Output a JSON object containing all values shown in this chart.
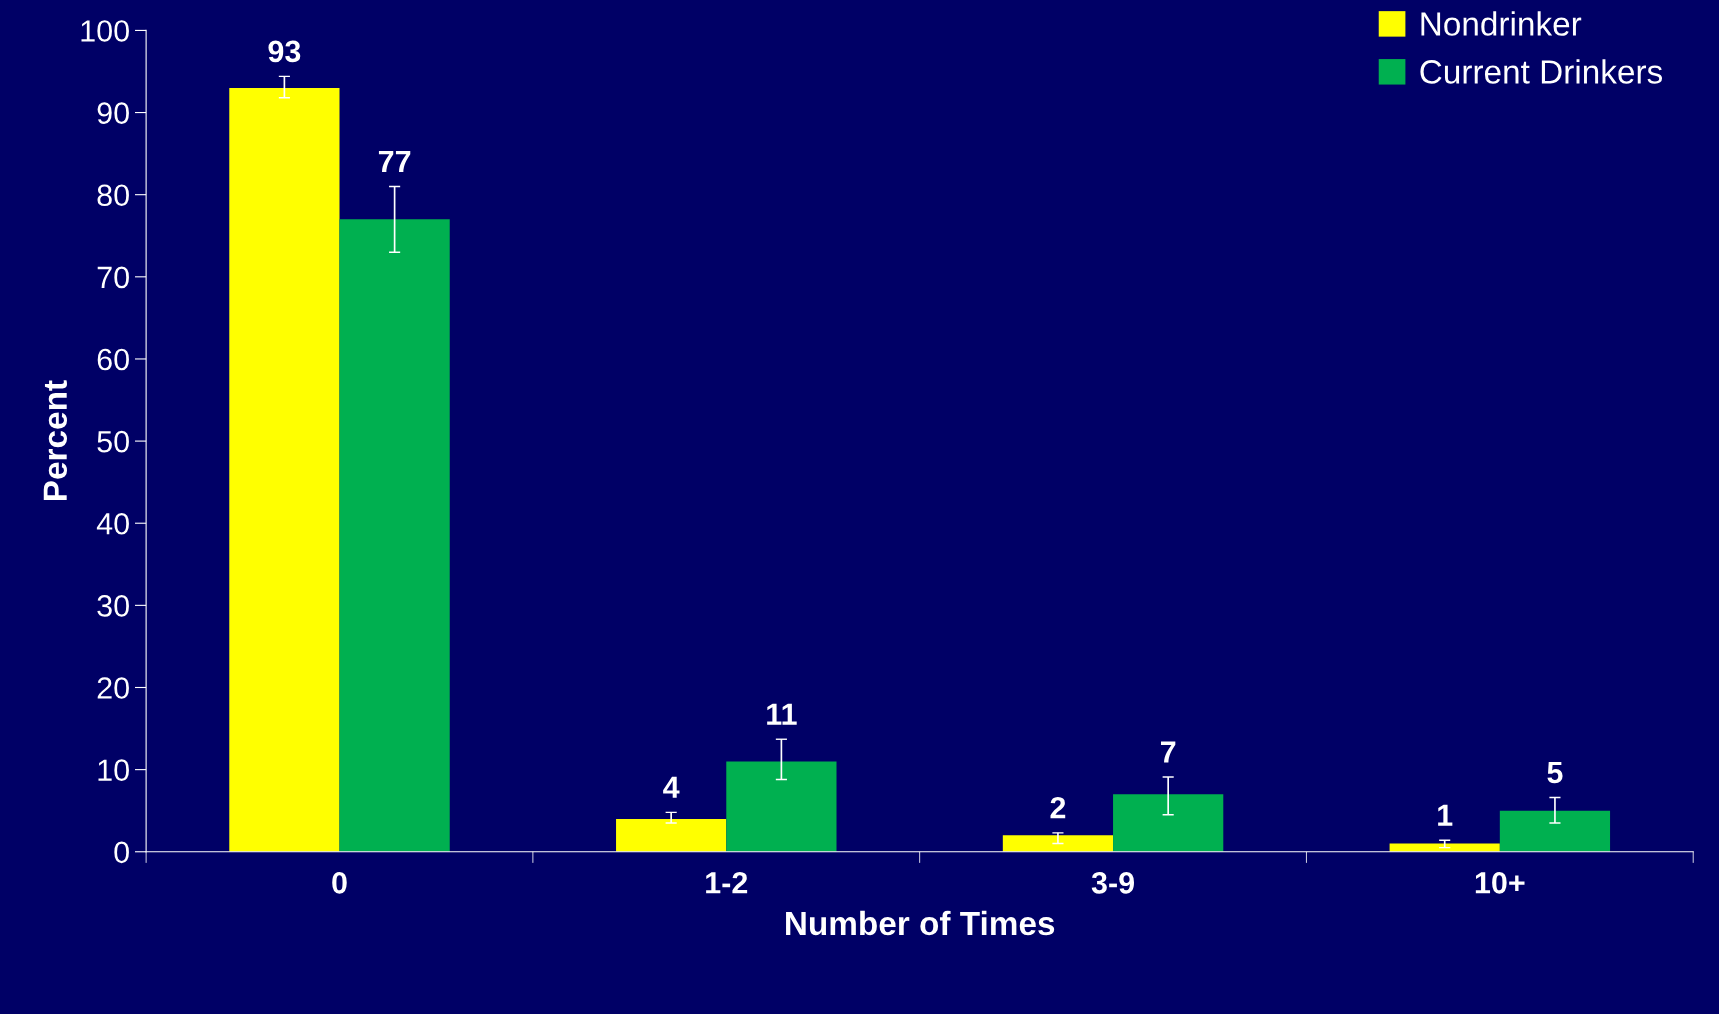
{
  "chart_data": {
    "type": "bar",
    "xlabel": "Number of Times",
    "ylabel": "Percent",
    "categories": [
      "0",
      "1-2",
      "3-9",
      "10+"
    ],
    "series": [
      {
        "name": "Nondrinker",
        "color": "#ffff00",
        "values": [
          93,
          4,
          2,
          1
        ],
        "errors": [
          [
            91.8,
            94.4
          ],
          [
            3.5,
            4.8
          ],
          [
            1.0,
            2.3
          ],
          [
            0.5,
            1.4
          ]
        ]
      },
      {
        "name": "Current Drinkers",
        "color": "#00b050",
        "values": [
          77,
          11,
          7,
          5
        ],
        "errors": [
          [
            73,
            81
          ],
          [
            8.8,
            13.7
          ],
          [
            4.5,
            9.1
          ],
          [
            3.5,
            6.6
          ]
        ]
      }
    ],
    "ylim": [
      0,
      100
    ],
    "yticks": [
      0,
      10,
      20,
      30,
      40,
      50,
      60,
      70,
      80,
      90,
      100
    ],
    "data_labels": true,
    "legend": "top right",
    "grid": false
  }
}
